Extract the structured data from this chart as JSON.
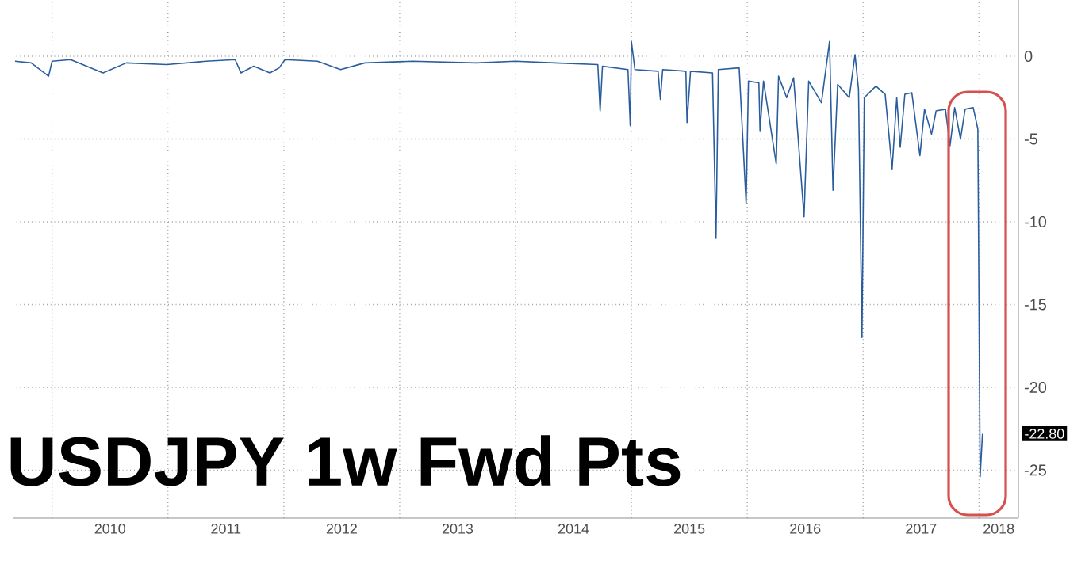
{
  "chart_data": {
    "type": "line",
    "title": "USDJPY 1w Fwd Pts",
    "series": [
      {
        "color": "#2a5d9f",
        "x": [
          2009.68,
          2009.82,
          2009.97,
          2010.0,
          2010.16,
          2010.44,
          2010.64,
          2010.99,
          2011.33,
          2011.58,
          2011.63,
          2011.74,
          2011.88,
          2011.96,
          2012.01,
          2012.29,
          2012.49,
          2012.7,
          2013.11,
          2013.66,
          2014.0,
          2014.34,
          2014.71,
          2014.73,
          2014.75,
          2014.97,
          2014.99,
          2015.0,
          2015.03,
          2015.23,
          2015.25,
          2015.27,
          2015.47,
          2015.48,
          2015.51,
          2015.7,
          2015.73,
          2015.75,
          2015.93,
          2015.99,
          2016.01,
          2016.1,
          2016.11,
          2016.14,
          2016.25,
          2016.27,
          2016.34,
          2016.4,
          2016.49,
          2016.53,
          2016.64,
          2016.71,
          2016.74,
          2016.78,
          2016.88,
          2016.93,
          2016.96,
          2016.99,
          2017.01,
          2017.11,
          2017.19,
          2017.25,
          2017.29,
          2017.32,
          2017.36,
          2017.42,
          2017.49,
          2017.53,
          2017.59,
          2017.63,
          2017.71,
          2017.75,
          2017.79,
          2017.84,
          2017.88,
          2017.95,
          2017.99,
          2018.0,
          2018.01,
          2018.03
        ],
        "values": [
          -0.3,
          -0.4,
          -1.2,
          -0.3,
          -0.2,
          -1.0,
          -0.4,
          -0.5,
          -0.3,
          -0.2,
          -1.0,
          -0.6,
          -1.0,
          -0.7,
          -0.2,
          -0.3,
          -0.8,
          -0.4,
          -0.3,
          -0.4,
          -0.3,
          -0.4,
          -0.5,
          -3.3,
          -0.6,
          -0.8,
          -4.2,
          0.9,
          -0.8,
          -0.9,
          -2.6,
          -0.8,
          -0.9,
          -4.0,
          -0.9,
          -1.0,
          -11.0,
          -0.8,
          -0.7,
          -8.9,
          -1.5,
          -1.6,
          -4.5,
          -1.5,
          -6.5,
          -1.2,
          -2.5,
          -1.3,
          -9.7,
          -1.5,
          -2.8,
          0.9,
          -8.1,
          -1.7,
          -2.5,
          0.1,
          -2.0,
          -17.0,
          -2.5,
          -1.8,
          -2.3,
          -6.8,
          -2.5,
          -5.5,
          -2.3,
          -2.2,
          -6.0,
          -3.2,
          -4.7,
          -3.3,
          -3.2,
          -5.4,
          -3.1,
          -5.0,
          -3.2,
          -3.1,
          -4.4,
          -15.0,
          -25.4,
          -22.8
        ]
      }
    ],
    "xlim": [
      2009.66,
      2018.34
    ],
    "xticks": [
      {
        "value": 2010,
        "label": null
      },
      {
        "value": 2011,
        "label": null
      },
      {
        "value": 2012,
        "label": null
      },
      {
        "value": 2013,
        "label": null
      },
      {
        "value": 2014,
        "label": null
      },
      {
        "value": 2015,
        "label": null
      },
      {
        "value": 2016,
        "label": null
      },
      {
        "value": 2017,
        "label": null
      },
      {
        "value": 2018,
        "label": null
      },
      {
        "value": 2010.5,
        "label": "2010"
      },
      {
        "value": 2011.5,
        "label": "2011"
      },
      {
        "value": 2012.5,
        "label": "2012"
      },
      {
        "value": 2013.5,
        "label": "2013"
      },
      {
        "value": 2014.5,
        "label": "2014"
      },
      {
        "value": 2015.5,
        "label": "2015"
      },
      {
        "value": 2016.5,
        "label": "2016"
      },
      {
        "value": 2017.5,
        "label": "2017"
      },
      {
        "value": 2018.17,
        "label": "2018"
      }
    ],
    "ylim": [
      -27.9,
      3.4
    ],
    "yticks": [
      {
        "value": 0,
        "label": "0"
      },
      {
        "value": -5,
        "label": "-5"
      },
      {
        "value": -10,
        "label": "-10"
      },
      {
        "value": -15,
        "label": "-15"
      },
      {
        "value": -20,
        "label": "-20"
      },
      {
        "value": -25,
        "label": "-25"
      }
    ],
    "annotations": [
      {
        "text": "-22.80",
        "y": -22.8
      }
    ],
    "grid": true,
    "line_style": "solid",
    "marker": "none"
  }
}
